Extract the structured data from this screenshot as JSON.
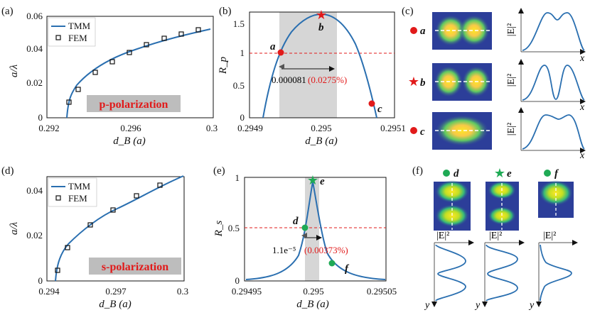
{
  "panels": {
    "a": {
      "label": "(a)",
      "ylabel": "a/λ",
      "xlabel": "d_B (a)",
      "legend": [
        "TMM",
        "FEM"
      ],
      "badge": "p-polarization",
      "xticks": [
        "0.292",
        "0.296",
        "0.3"
      ],
      "yticks": [
        "0",
        "0.02",
        "0.04",
        "0.06"
      ]
    },
    "b": {
      "label": "(b)",
      "ylabel": "R_p",
      "xlabel": "d_B (a)",
      "xticks": [
        "0.2949",
        "0.295",
        "0.2951"
      ],
      "yticks": [
        "0",
        "0.5",
        "1",
        "1.5"
      ],
      "width_value": "0.000081",
      "width_pct": "(0.0275%)",
      "points": [
        "a",
        "b",
        "c"
      ]
    },
    "c": {
      "label": "(c)",
      "rows": [
        "a",
        "b",
        "c"
      ],
      "ylabel": "|E|²",
      "xlabel": "x"
    },
    "d": {
      "label": "(d)",
      "ylabel": "a/λ",
      "xlabel": "d_B (a)",
      "legend": [
        "TMM",
        "FEM"
      ],
      "badge": "s-polarization",
      "xticks": [
        "0.294",
        "0.297",
        "0.3"
      ],
      "yticks": [
        "0",
        "0.02",
        "0.04"
      ]
    },
    "e": {
      "label": "(e)",
      "ylabel": "R_s",
      "xlabel": "d_B (a)",
      "xticks": [
        "0.29495",
        "0.295",
        "0.29505"
      ],
      "yticks": [
        "0",
        "0.5",
        "1"
      ],
      "width_value": "1.1e⁻⁵",
      "width_pct": "(0.00373%)",
      "points": [
        "d",
        "e",
        "f"
      ]
    },
    "f": {
      "label": "(f)",
      "cols": [
        "d",
        "e",
        "f"
      ],
      "xlabel": "|E|²",
      "ylabel": "y"
    }
  },
  "colors": {
    "curve": "#2a6fb0",
    "red": "#e11a1a",
    "green": "#1faa55",
    "band": "#d6d6d6",
    "badge": "#bdbdbd"
  },
  "chart_data": [
    {
      "panel": "a",
      "type": "line",
      "xlabel": "d_B (a)",
      "ylabel": "a/λ",
      "xlim": [
        0.292,
        0.3
      ],
      "ylim": [
        0,
        0.06
      ],
      "series": [
        {
          "name": "TMM",
          "x": [
            0.2933,
            0.2934,
            0.2936,
            0.294,
            0.2945,
            0.295,
            0.296,
            0.297,
            0.298,
            0.299,
            0.3
          ],
          "y": [
            0,
            0.007,
            0.011,
            0.0165,
            0.022,
            0.026,
            0.0325,
            0.038,
            0.043,
            0.047,
            0.051
          ]
        },
        {
          "name": "FEM",
          "x": [
            0.2935,
            0.294,
            0.295,
            0.296,
            0.297,
            0.298,
            0.299,
            0.3
          ],
          "y": [
            0.0095,
            0.017,
            0.026,
            0.0325,
            0.038,
            0.043,
            0.047,
            0.051
          ]
        }
      ]
    },
    {
      "panel": "b",
      "type": "line",
      "xlabel": "d_B (a)",
      "ylabel": "R_p",
      "xlim": [
        0.2949,
        0.2951
      ],
      "ylim": [
        0,
        1.65
      ],
      "series": [
        {
          "x": [
            0.29494,
            0.29496,
            0.29498,
            0.295,
            0.29502,
            0.29504,
            0.29506,
            0.29508
          ],
          "y": [
            0,
            0.95,
            1.4,
            1.6,
            1.42,
            1.0,
            0.35,
            0
          ]
        }
      ],
      "points": [
        {
          "label": "a",
          "x": 0.294959,
          "y": 1.0
        },
        {
          "label": "b",
          "x": 0.295,
          "y": 1.6
        },
        {
          "label": "c",
          "x": 0.295058,
          "y": 0.24
        }
      ]
    },
    {
      "panel": "d",
      "type": "line",
      "xlabel": "d_B (a)",
      "ylabel": "a/λ",
      "xlim": [
        0.294,
        0.3
      ],
      "ylim": [
        0,
        0.047
      ],
      "series": [
        {
          "name": "TMM",
          "x": [
            0.2944,
            0.2945,
            0.2947,
            0.295,
            0.296,
            0.297,
            0.298,
            0.299,
            0.3
          ],
          "y": [
            0,
            0.006,
            0.011,
            0.015,
            0.025,
            0.0315,
            0.037,
            0.042,
            0.046
          ]
        },
        {
          "name": "FEM",
          "x": [
            0.2945,
            0.295,
            0.296,
            0.297,
            0.298,
            0.299
          ],
          "y": [
            0.0045,
            0.015,
            0.025,
            0.0315,
            0.037,
            0.042
          ]
        }
      ]
    },
    {
      "panel": "e",
      "type": "line",
      "xlabel": "d_B (a)",
      "ylabel": "R_s",
      "xlim": [
        0.29495,
        0.29505
      ],
      "ylim": [
        0,
        1
      ],
      "series": [
        {
          "x": [
            0.29495,
            0.29498,
            0.29499,
            0.294995,
            0.295,
            0.295005,
            0.29501,
            0.29502,
            0.29505
          ],
          "y": [
            0,
            0.05,
            0.13,
            0.4,
            0.97,
            0.45,
            0.17,
            0.06,
            0.0
          ]
        }
      ],
      "points": [
        {
          "label": "d",
          "x": 0.294995,
          "y": 0.5
        },
        {
          "label": "e",
          "x": 0.295,
          "y": 0.97
        },
        {
          "label": "f",
          "x": 0.295011,
          "y": 0.15
        }
      ]
    }
  ]
}
